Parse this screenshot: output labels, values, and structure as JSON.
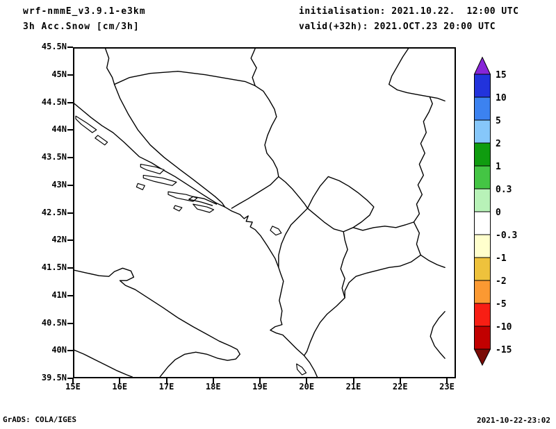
{
  "header": {
    "model": "wrf-nmmE_v3.9.1-e3km",
    "field": "3h Acc.Snow [cm/3h]",
    "init_label": "initialisation: 2021.10.22.  12:00 UTC",
    "valid_label": "valid(+32h): 2021.OCT.23 20:00 UTC"
  },
  "footer": {
    "grads_credit": "GrADS: COLA/IGES",
    "creation_time": "2021-10-22-23:02"
  },
  "chart_data": {
    "type": "map",
    "title": "3h Acc.Snow [cm/3h]",
    "model_run": "wrf-nmmE_v3.9.1-e3km",
    "initialisation": "2021.10.22. 12:00 UTC",
    "valid_time": "2021.OCT.23 20:00 UTC",
    "forecast_hour": "+32h",
    "region": "Adriatic / Balkans",
    "lon_range_deg_east": [
      15,
      23.2
    ],
    "lat_range_deg_north": [
      39.5,
      45.5
    ],
    "x_ticks": [
      "15E",
      "16E",
      "17E",
      "18E",
      "19E",
      "20E",
      "21E",
      "22E",
      "23E"
    ],
    "y_ticks": [
      "45.5N",
      "45N",
      "44.5N",
      "44N",
      "43.5N",
      "43N",
      "42.5N",
      "42N",
      "41.5N",
      "41N",
      "40.5N",
      "40N",
      "39.5N"
    ],
    "grid": "off",
    "shading": "no nonzero snow accumulation shaded in the domain; only coastlines and country borders are drawn",
    "colorbar": {
      "units": "cm/3h",
      "levels": [
        "15",
        "10",
        "5",
        "2",
        "1",
        "0.3",
        "0",
        "-0.3",
        "-1",
        "-2",
        "-5",
        "-10",
        "-15"
      ],
      "colors_top_to_bottom": [
        "#2233dc",
        "#3c82f0",
        "#86c7fa",
        "#0f9c0f",
        "#44c544",
        "#b8f2b8",
        "#ffffff",
        "#ffffcd",
        "#eec23c",
        "#fb9932",
        "#f81e14",
        "#c10000"
      ],
      "arrow_top_color": "#8725d8",
      "arrow_bottom_color": "#7a0b06"
    }
  }
}
